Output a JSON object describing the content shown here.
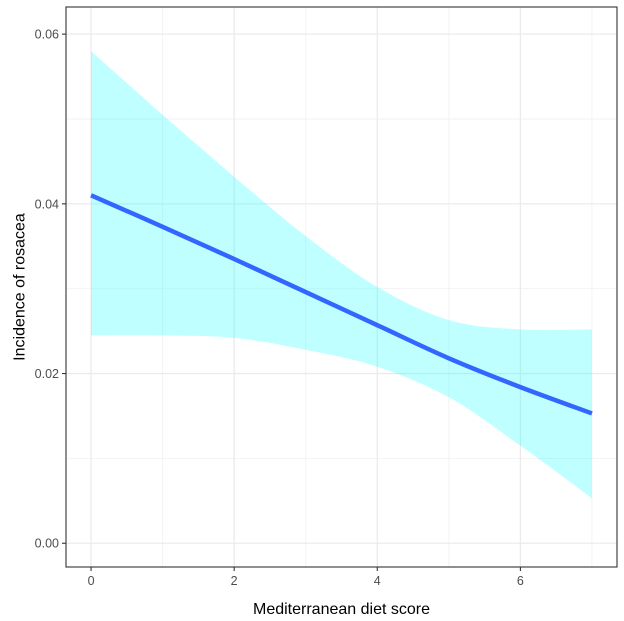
{
  "chart_data": {
    "type": "line",
    "title": "",
    "xlabel": "Mediterranean diet score",
    "ylabel": "Incidence of rosacea",
    "xlim": [
      -0.35,
      7.35
    ],
    "ylim": [
      -0.0028,
      0.0632
    ],
    "x_ticks": [
      0,
      2,
      4,
      6
    ],
    "x_tick_labels": [
      "0",
      "2",
      "4",
      "6"
    ],
    "y_ticks": [
      0.0,
      0.02,
      0.04,
      0.06
    ],
    "y_tick_labels": [
      "0.00",
      "0.02",
      "0.04",
      "0.06"
    ],
    "grid": true,
    "series": [
      {
        "kind": "fit-line",
        "color": "#3366ff",
        "x": [
          0,
          1,
          2,
          3,
          4,
          5,
          6,
          7
        ],
        "y": [
          0.041,
          0.0373,
          0.0335,
          0.0296,
          0.0257,
          0.0218,
          0.0184,
          0.0153
        ]
      },
      {
        "kind": "confidence-band",
        "color": "#00ffff",
        "opacity": 0.25,
        "x": [
          0,
          1,
          2,
          3,
          4,
          5,
          6,
          7
        ],
        "upper": [
          0.058,
          0.0505,
          0.0432,
          0.0362,
          0.0302,
          0.0263,
          0.0252,
          0.0252
        ],
        "lower": [
          0.0245,
          0.0245,
          0.0242,
          0.0228,
          0.0208,
          0.0172,
          0.0115,
          0.0053
        ]
      }
    ]
  }
}
